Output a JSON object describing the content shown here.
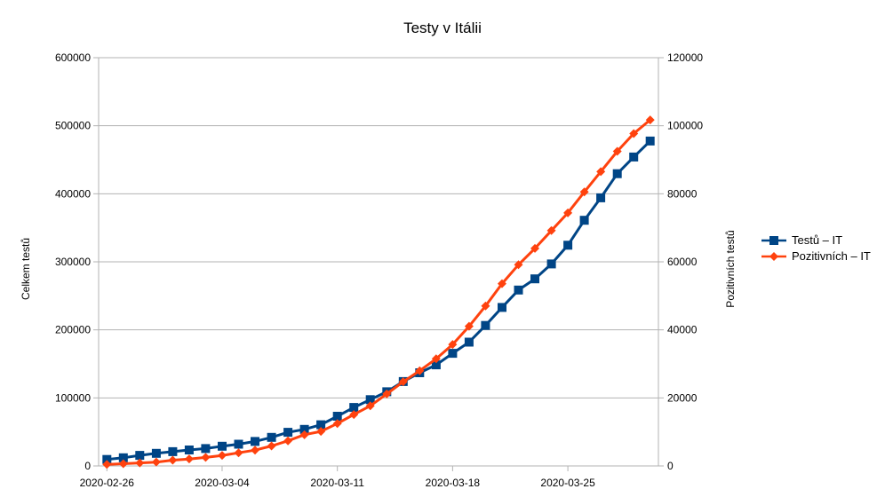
{
  "chart_data": {
    "type": "line",
    "title": "Testy v Itálii",
    "ylabel_left": "Celkem testů",
    "ylabel_right": "Pozitivních testů",
    "ylim_left": [
      0,
      600000
    ],
    "ylim_right": [
      0,
      120000
    ],
    "yticks_left": [
      "0",
      "100000",
      "200000",
      "300000",
      "400000",
      "500000",
      "600000"
    ],
    "yticks_right": [
      "0",
      "20000",
      "40000",
      "60000",
      "80000",
      "100000",
      "120000"
    ],
    "x": [
      "2020-02-26",
      "2020-02-27",
      "2020-02-28",
      "2020-02-29",
      "2020-03-01",
      "2020-03-02",
      "2020-03-03",
      "2020-03-04",
      "2020-03-05",
      "2020-03-06",
      "2020-03-07",
      "2020-03-08",
      "2020-03-09",
      "2020-03-10",
      "2020-03-11",
      "2020-03-12",
      "2020-03-13",
      "2020-03-14",
      "2020-03-15",
      "2020-03-16",
      "2020-03-17",
      "2020-03-18",
      "2020-03-19",
      "2020-03-20",
      "2020-03-21",
      "2020-03-22",
      "2020-03-23",
      "2020-03-24",
      "2020-03-25",
      "2020-03-26",
      "2020-03-27",
      "2020-03-28",
      "2020-03-29",
      "2020-03-30"
    ],
    "xtick_labels": [
      "2020-02-26",
      "2020-03-04",
      "2020-03-11",
      "2020-03-18",
      "2020-03-25"
    ],
    "grid": true,
    "legend_position": "right",
    "series": [
      {
        "name": "Testů – IT",
        "axis": "left",
        "color": "#004586",
        "marker": "square",
        "values": [
          9500,
          12000,
          15500,
          18500,
          21000,
          23500,
          25500,
          29000,
          32000,
          36000,
          42000,
          49500,
          53800,
          60500,
          73000,
          86000,
          97500,
          109000,
          124000,
          137000,
          148500,
          165500,
          182000,
          206500,
          233000,
          258500,
          275000,
          296900,
          324400,
          361000,
          394000,
          429500,
          454000,
          477500
        ]
      },
      {
        "name": "Pozitivních – IT",
        "axis": "right",
        "color": "#ff420e",
        "marker": "diamond",
        "values": [
          450,
          650,
          890,
          1130,
          1700,
          2040,
          2500,
          3090,
          3860,
          4640,
          5880,
          7380,
          9170,
          10150,
          12460,
          15110,
          17660,
          21160,
          24750,
          27980,
          31500,
          35710,
          41040,
          47020,
          53580,
          59140,
          63930,
          69180,
          74390,
          80540,
          86500,
          92470,
          97690,
          101700
        ]
      }
    ]
  }
}
